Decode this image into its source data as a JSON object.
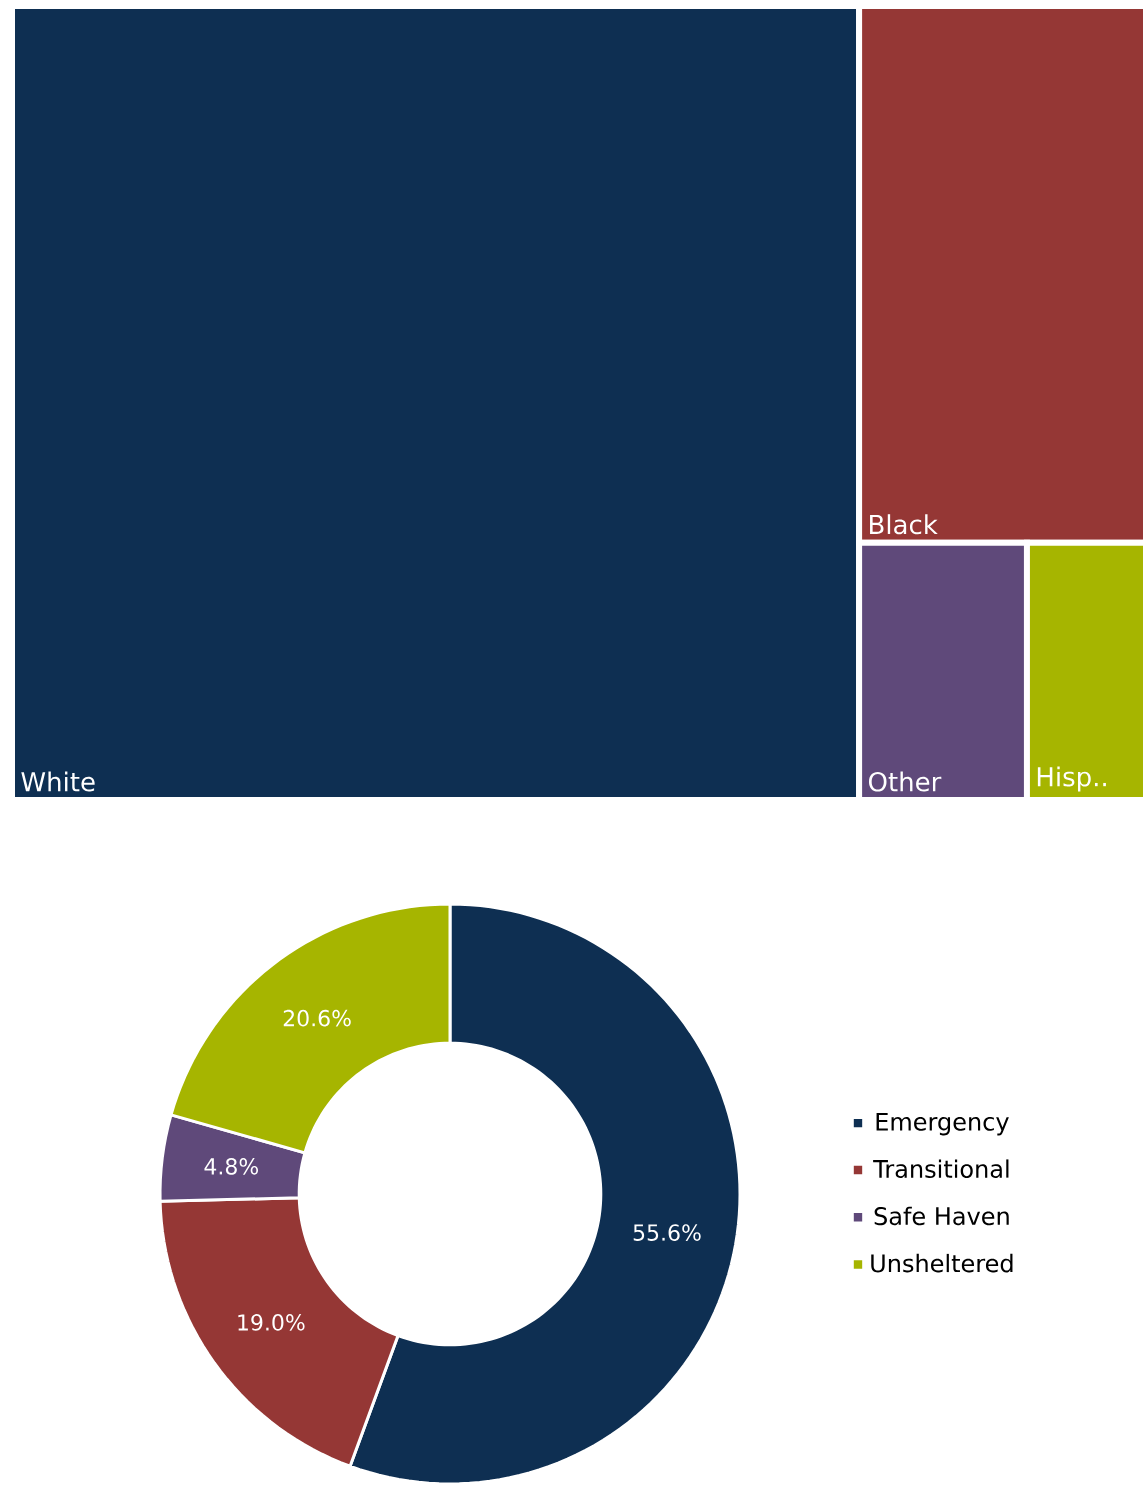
{
  "chart_data": [
    {
      "type": "other",
      "categories": [
        "White",
        "Black",
        "Other",
        "Hisp.."
      ],
      "colors": [
        "#0e2f52",
        "#953735",
        "#5f497a",
        "#a6b500"
      ]
    },
    {
      "type": "donut",
      "categories": [
        "Emergency",
        "Transitional",
        "Safe Haven",
        "Unsheltered"
      ],
      "values": [
        55.6,
        19.0,
        4.8,
        20.6
      ],
      "colors": [
        "#0e2f52",
        "#953735",
        "#5f497a",
        "#a6b500"
      ],
      "value_labels": [
        "55.6%",
        "19.0%",
        "4.8%",
        "20.6%"
      ],
      "legend": "right"
    }
  ]
}
